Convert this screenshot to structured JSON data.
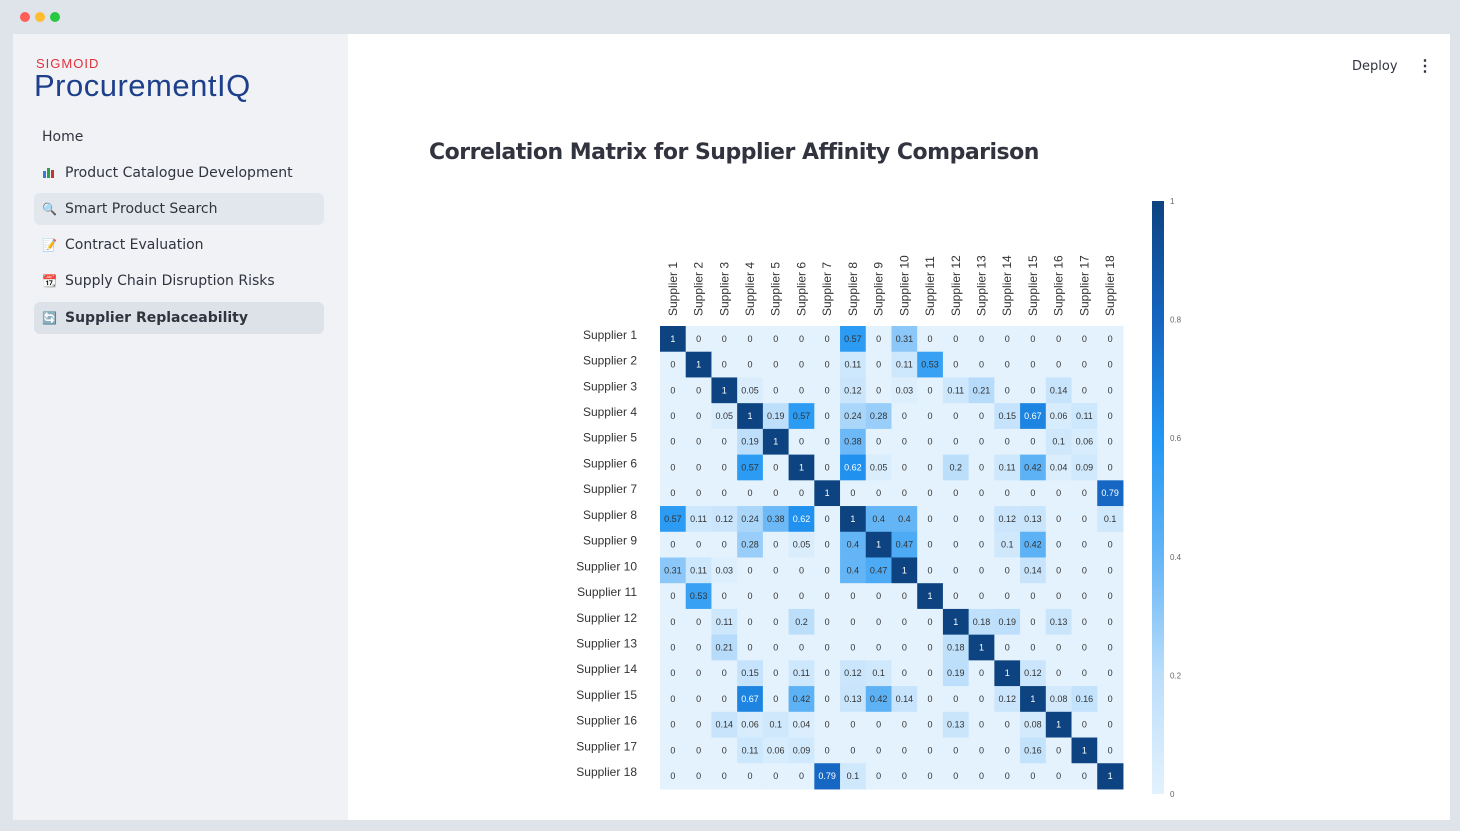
{
  "sidebar": {
    "brand_small": "SIGMOID",
    "brand": "ProcurementIQ",
    "items": [
      {
        "label": "Home",
        "icon": ""
      },
      {
        "label": "Product Catalogue Development",
        "icon": "bar-chart-icon"
      },
      {
        "label": "Smart Product Search",
        "icon": "magnifier-icon"
      },
      {
        "label": "Contract Evaluation",
        "icon": "memo-icon"
      },
      {
        "label": "Supply Chain Disruption Risks",
        "icon": "calendar-icon"
      },
      {
        "label": "Supplier Replaceability",
        "icon": "refresh-icon"
      }
    ]
  },
  "header": {
    "deploy_label": "Deploy",
    "menu_icon": "more-vertical-icon"
  },
  "main": {
    "title": "Correlation Matrix for Supplier Affinity Comparison"
  },
  "chart_data": {
    "type": "heatmap",
    "title": "Correlation Matrix for Supplier Affinity Comparison",
    "x": [
      "Supplier 1",
      "Supplier 2",
      "Supplier 3",
      "Supplier 4",
      "Supplier 5",
      "Supplier 6",
      "Supplier 7",
      "Supplier 8",
      "Supplier 9",
      "Supplier 10",
      "Supplier 11",
      "Supplier 12",
      "Supplier 13",
      "Supplier 14",
      "Supplier 15",
      "Supplier 16",
      "Supplier 17",
      "Supplier 18"
    ],
    "y": [
      "Supplier 1",
      "Supplier 2",
      "Supplier 3",
      "Supplier 4",
      "Supplier 5",
      "Supplier 6",
      "Supplier 7",
      "Supplier 8",
      "Supplier 9",
      "Supplier 10",
      "Supplier 11",
      "Supplier 12",
      "Supplier 13",
      "Supplier 14",
      "Supplier 15",
      "Supplier 16",
      "Supplier 17",
      "Supplier 18"
    ],
    "z": [
      [
        1,
        0,
        0,
        0,
        0,
        0,
        0,
        0.57,
        0,
        0.31,
        0,
        0,
        0,
        0,
        0,
        0,
        0,
        0
      ],
      [
        0,
        1,
        0,
        0,
        0,
        0,
        0,
        0.11,
        0,
        0.11,
        0.53,
        0,
        0,
        0,
        0,
        0,
        0,
        0
      ],
      [
        0,
        0,
        1,
        0.05,
        0,
        0,
        0,
        0.12,
        0,
        0.03,
        0,
        0.11,
        0.21,
        0,
        0,
        0.14,
        0,
        0
      ],
      [
        0,
        0,
        0.05,
        1,
        0.19,
        0.57,
        0,
        0.24,
        0.28,
        0,
        0,
        0,
        0,
        0.15,
        0.67,
        0.06,
        0.11,
        0
      ],
      [
        0,
        0,
        0,
        0.19,
        1,
        0,
        0,
        0.38,
        0,
        0,
        0,
        0,
        0,
        0,
        0,
        0.1,
        0.06,
        0
      ],
      [
        0,
        0,
        0,
        0.57,
        0,
        1,
        0,
        0.62,
        0.05,
        0,
        0,
        0.2,
        0,
        0.11,
        0.42,
        0.04,
        0.09,
        0
      ],
      [
        0,
        0,
        0,
        0,
        0,
        0,
        1,
        0,
        0,
        0,
        0,
        0,
        0,
        0,
        0,
        0,
        0,
        0.79
      ],
      [
        0.57,
        0.11,
        0.12,
        0.24,
        0.38,
        0.62,
        0,
        1,
        0.4,
        0.4,
        0,
        0,
        0,
        0.12,
        0.13,
        0,
        0,
        0.1
      ],
      [
        0,
        0,
        0,
        0.28,
        0,
        0.05,
        0,
        0.4,
        1,
        0.47,
        0,
        0,
        0,
        0.1,
        0.42,
        0,
        0,
        0
      ],
      [
        0.31,
        0.11,
        0.03,
        0,
        0,
        0,
        0,
        0.4,
        0.47,
        1,
        0,
        0,
        0,
        0,
        0.14,
        0,
        0,
        0
      ],
      [
        0,
        0.53,
        0,
        0,
        0,
        0,
        0,
        0,
        0,
        0,
        1,
        0,
        0,
        0,
        0,
        0,
        0,
        0
      ],
      [
        0,
        0,
        0.11,
        0,
        0,
        0.2,
        0,
        0,
        0,
        0,
        0,
        1,
        0.18,
        0.19,
        0,
        0.13,
        0,
        0
      ],
      [
        0,
        0,
        0.21,
        0,
        0,
        0,
        0,
        0,
        0,
        0,
        0,
        0.18,
        1,
        0,
        0,
        0,
        0,
        0
      ],
      [
        0,
        0,
        0,
        0.15,
        0,
        0.11,
        0,
        0.12,
        0.1,
        0,
        0,
        0.19,
        0,
        1,
        0.12,
        0,
        0,
        0
      ],
      [
        0,
        0,
        0,
        0.67,
        0,
        0.42,
        0,
        0.13,
        0.42,
        0.14,
        0,
        0,
        0,
        0.12,
        1,
        0.08,
        0.16,
        0
      ],
      [
        0,
        0,
        0.14,
        0.06,
        0.1,
        0.04,
        0,
        0,
        0,
        0,
        0,
        0.13,
        0,
        0,
        0.08,
        1,
        0,
        0
      ],
      [
        0,
        0,
        0,
        0.11,
        0.06,
        0.09,
        0,
        0,
        0,
        0,
        0,
        0,
        0,
        0,
        0.16,
        0,
        1,
        0
      ],
      [
        0,
        0,
        0,
        0,
        0,
        0,
        0.79,
        0.1,
        0,
        0,
        0,
        0,
        0,
        0,
        0,
        0,
        0,
        1
      ]
    ],
    "zlim": [
      0,
      1
    ],
    "colorbar_ticks": [
      "0",
      "0.2",
      "0.4",
      "0.6",
      "0.8",
      "1"
    ],
    "colorscale": [
      "#e3f2fd",
      "#bbdefb",
      "#64b5f6",
      "#2196f3",
      "#1565c0",
      "#0d4380"
    ]
  }
}
